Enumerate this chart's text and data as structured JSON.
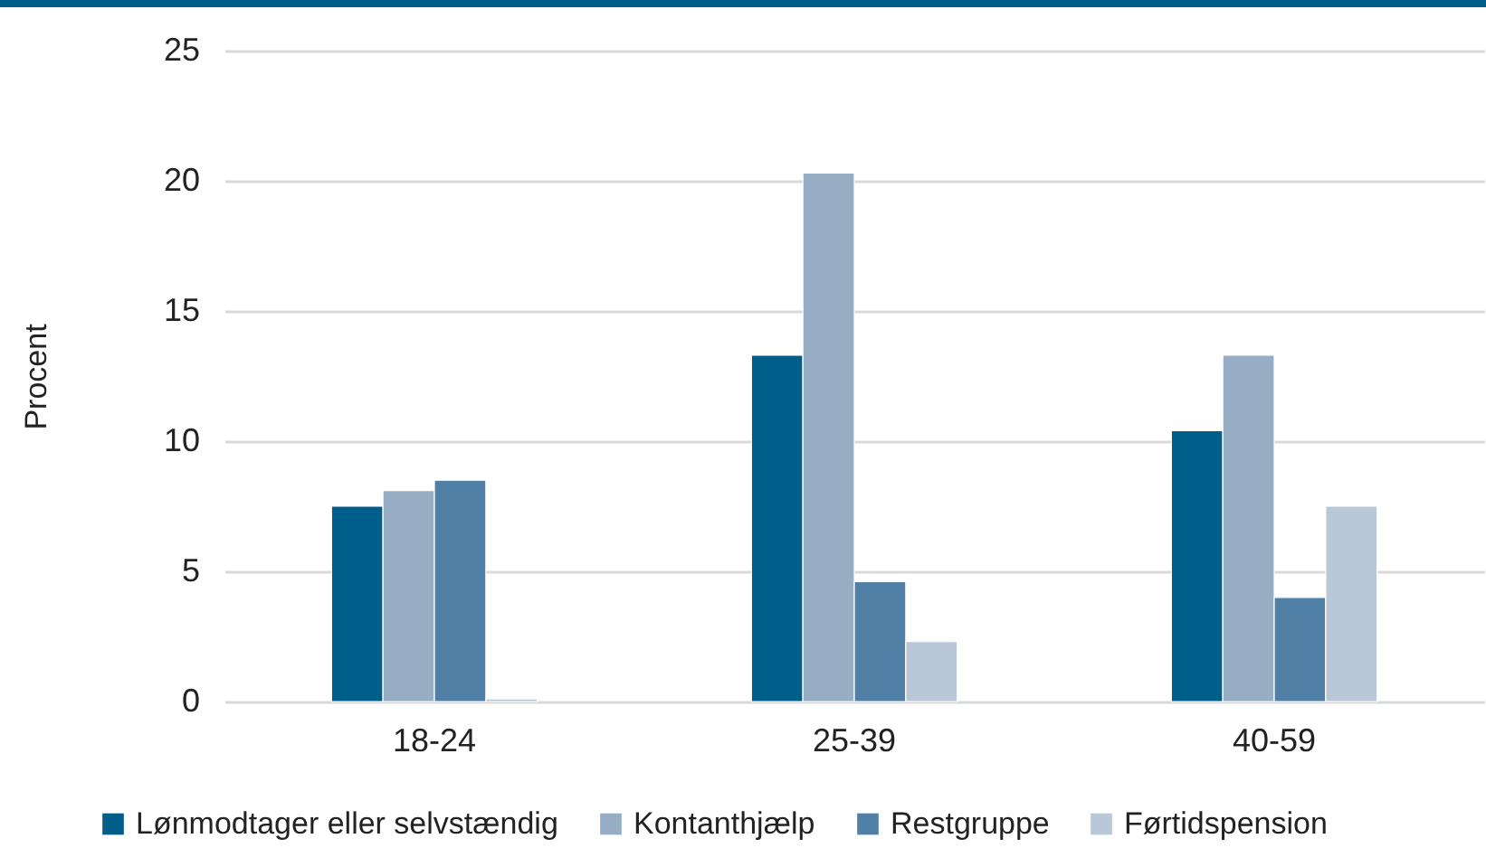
{
  "chart_data": {
    "type": "bar",
    "ylabel": "Procent",
    "categories": [
      "18-24",
      "25-39",
      "40-59"
    ],
    "series": [
      {
        "name": "Lønmodtager eller selvstændig",
        "color": "#005f8a",
        "values": [
          7.5,
          13.3,
          10.4
        ]
      },
      {
        "name": "Kontanthjælp",
        "color": "#97adc4",
        "values": [
          8.1,
          20.3,
          13.3
        ]
      },
      {
        "name": "Restgruppe",
        "color": "#5080a5",
        "values": [
          8.5,
          4.6,
          4.0
        ]
      },
      {
        "name": "Førtidspension",
        "color": "#bac7d8",
        "values": [
          0.1,
          2.3,
          7.5
        ]
      }
    ],
    "ylim": [
      0,
      25
    ],
    "yticks": [
      0,
      5,
      10,
      15,
      20,
      25
    ],
    "grid": "y",
    "legend": "bottom"
  }
}
